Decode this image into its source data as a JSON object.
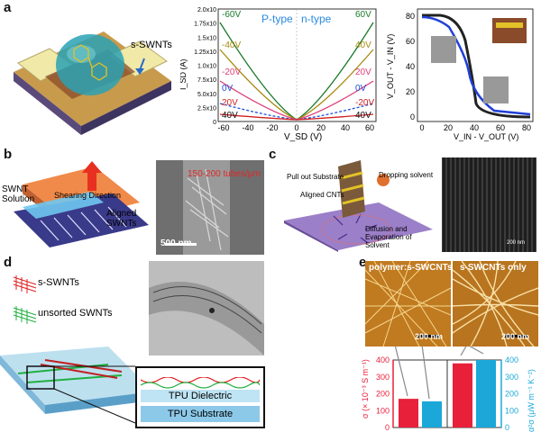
{
  "panel_a": {
    "label": "a",
    "device_label": "s-SWNTs",
    "chart1": {
      "ylabel": "I_SD (A)",
      "xlabel": "V_SD (V)",
      "p_type_label": "P-type",
      "n_type_label": "n-type",
      "y_ticks": [
        "0",
        "2.5x10",
        "5.0x10",
        "7.5x10",
        "1.0x10",
        "1.25x10",
        "1.5x10",
        "1.75x10",
        "2.0x10"
      ],
      "x_ticks": [
        "-60",
        "-40",
        "-20",
        "0",
        "20",
        "40",
        "60"
      ],
      "left_curve_labels": [
        "-60V",
        "-40V",
        "-20V",
        "0V",
        "20V"
      ],
      "right_curve_labels": [
        "60V",
        "40V",
        "20V",
        "0V",
        "-20V"
      ],
      "bottom_labels": [
        "40V",
        "40V"
      ]
    },
    "chart2": {
      "ylabel": "V_OUT - V_IN (V)",
      "xlabel": "V_IN - V_OUT (V)",
      "x_ticks": [
        "0",
        "20",
        "40",
        "60",
        "80"
      ],
      "y_ticks": [
        "0",
        "20",
        "40",
        "60",
        "80"
      ]
    }
  },
  "panel_b": {
    "label": "b",
    "solution_label": "SWNT Solution",
    "shearing_label": "Shearing Direction",
    "aligned_label": "Aligned SWNTs",
    "density_label": "150-200 tubes/μm",
    "scale_bar": "500 nm"
  },
  "panel_c": {
    "label": "c",
    "pull_label": "Pull out Substrate",
    "drop_label": "Dropping solvent",
    "aligned_label": "Aligned CNTs",
    "diffusion_label": "Diffusion and Evaporation of Solvent",
    "scale_bar": "200 nm"
  },
  "panel_d": {
    "label": "d",
    "legend_sorted": "s-SWNTs",
    "legend_unsorted": "unsorted SWNTs",
    "dielectric_label": "TPU Dielectric",
    "substrate_label": "TPU Substrate"
  },
  "panel_e": {
    "label": "e",
    "image1_title": "polymer:s-SWCNTs",
    "image2_title": "s-SWCNTs only",
    "scale_bar": "200 nm",
    "chart_data": {
      "type": "bar",
      "left_ylabel": "σ (× 10⁻³ S m⁻¹)",
      "right_ylabel": "α²σ (μW m⁻¹ K⁻²)",
      "left_ylim": [
        0,
        400
      ],
      "right_ylim": [
        0,
        400
      ],
      "left_ticks": [
        "0",
        "100",
        "200",
        "300",
        "400"
      ],
      "right_ticks": [
        "0",
        "100",
        "200",
        "300",
        "400"
      ],
      "groups": [
        {
          "sigma": 170,
          "power_factor": 155
        },
        {
          "sigma": 380,
          "power_factor": 400
        }
      ],
      "colors": {
        "sigma": "#e8203a",
        "power_factor": "#1ba8d8"
      }
    }
  }
}
